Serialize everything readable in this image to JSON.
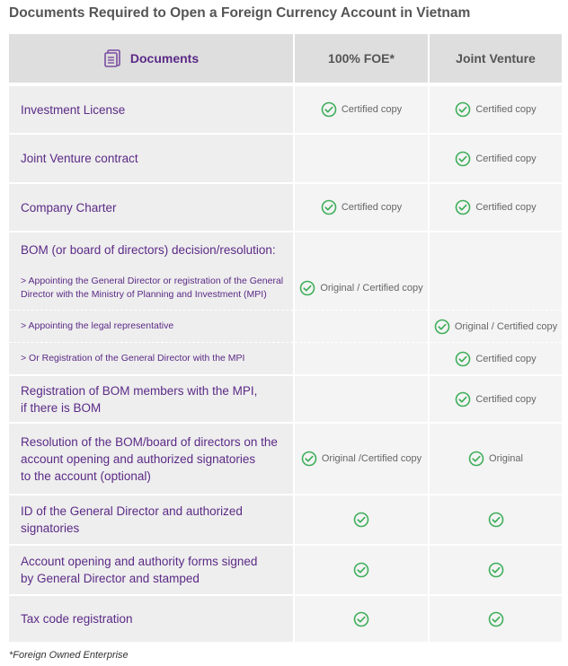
{
  "header": {
    "title": "Documents Required to Open a Foreign Currency Account in Vietnam"
  },
  "table": {
    "columns": [
      "Documents",
      "100% FOE*",
      "Joint Venture"
    ],
    "rows": [
      {
        "document": "Investment License",
        "foe": {
          "check": true,
          "text": "Certified copy"
        },
        "jv": {
          "check": true,
          "text": "Certified copy"
        }
      },
      {
        "document": "Joint Venture contract",
        "foe": null,
        "jv": {
          "check": true,
          "text": "Certified copy"
        }
      },
      {
        "document": "Company Charter",
        "foe": {
          "check": true,
          "text": "Certified copy"
        },
        "jv": {
          "check": true,
          "text": "Certified copy"
        }
      },
      {
        "document": "BOM (or board of directors) decision/resolution:",
        "foe": null,
        "jv": null
      },
      {
        "document": ">  Appointing the General Director or registration of the General\nDirector with the Ministry of Planning and Investment (MPI)",
        "sub": true,
        "foe": {
          "check": true,
          "text": "Original / Certified copy"
        },
        "jv": null
      },
      {
        "document": ">  Appointing the legal  representative",
        "sub": true,
        "foe": null,
        "jv": {
          "check": true,
          "text": "Original / Certified copy"
        }
      },
      {
        "document": ">  Or Registration of the General Director with the MPI",
        "sub": true,
        "foe": null,
        "jv": {
          "check": true,
          "text": "Certified copy"
        }
      },
      {
        "document": "Registration of BOM members with the MPI,\nif there is BOM",
        "foe": null,
        "jv": {
          "check": true,
          "text": "Certified copy"
        }
      },
      {
        "document": "Resolution of the BOM/board of directors on the\naccount  opening and authorized signatories\nto the account (optional)",
        "foe": {
          "check": true,
          "text": "Original /Certified copy"
        },
        "jv": {
          "check": true,
          "text": "Original"
        }
      },
      {
        "document": "ID of the General Director  and authorized\nsignatories",
        "foe": {
          "check": true
        },
        "jv": {
          "check": true
        }
      },
      {
        "document": "Account opening and authority forms signed\nby General Director and stamped",
        "foe": {
          "check": true
        },
        "jv": {
          "check": true
        }
      },
      {
        "document": "Tax code registration",
        "foe": {
          "check": true
        },
        "jv": {
          "check": true
        }
      }
    ]
  },
  "footnote": "*Foreign Owned Enterprise"
}
